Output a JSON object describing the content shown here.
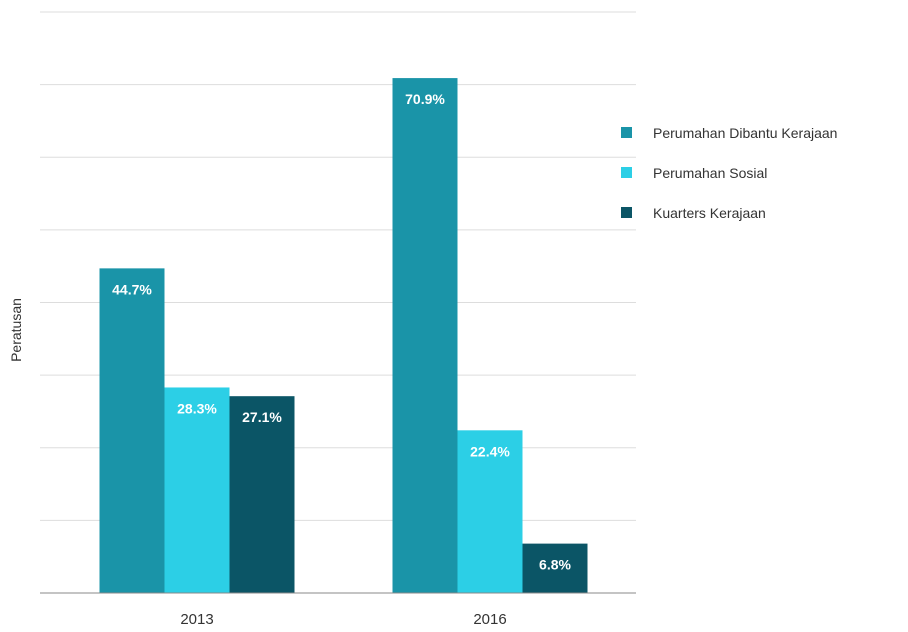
{
  "chart_data": {
    "type": "bar",
    "title": "",
    "xlabel": "",
    "ylabel": "Peratusan",
    "categories": [
      "2013",
      "2016"
    ],
    "series": [
      {
        "name": "Perumahan Dibantu Kerajaan",
        "color": "#1a94a8",
        "values": [
          44.7,
          70.9
        ],
        "labels": [
          "44.7%",
          "70.9%"
        ]
      },
      {
        "name": "Perumahan Sosial",
        "color": "#2ccfe6",
        "values": [
          28.3,
          22.4
        ],
        "labels": [
          "28.3%",
          "22.4%"
        ]
      },
      {
        "name": "Kuarters Kerajaan",
        "color": "#0b5566",
        "values": [
          27.1,
          6.8
        ],
        "labels": [
          "27.1%",
          "6.8%"
        ]
      }
    ],
    "ylim": [
      0,
      80
    ],
    "grid": true,
    "gridline_count": 8,
    "legend_position": "right",
    "value_labels": "inside-top"
  }
}
